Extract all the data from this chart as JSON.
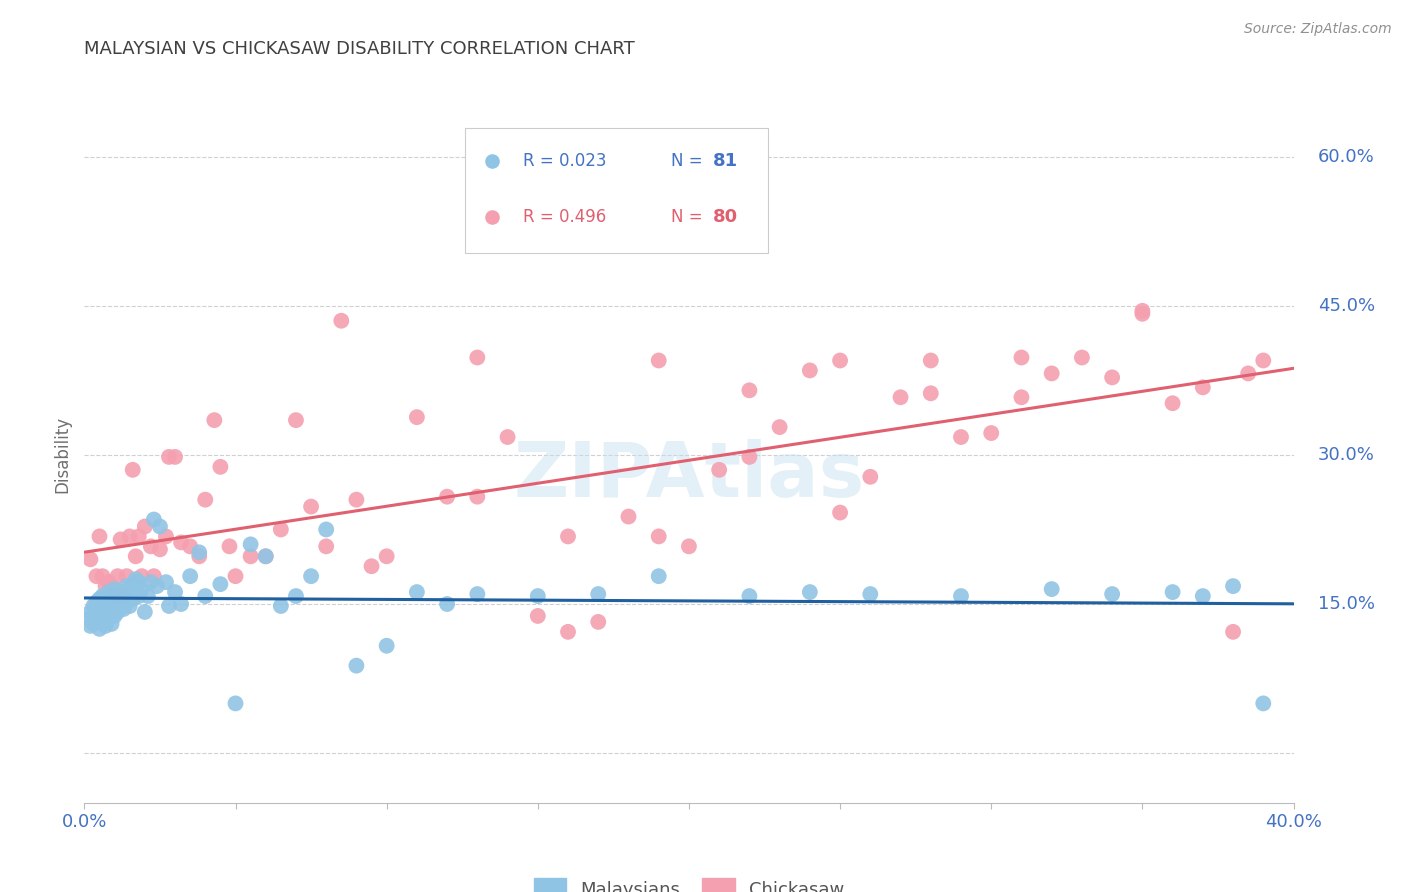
{
  "title": "MALAYSIAN VS CHICKASAW DISABILITY CORRELATION CHART",
  "source": "Source: ZipAtlas.com",
  "ylabel": "Disability",
  "ytick_labels": [
    "",
    "15.0%",
    "30.0%",
    "45.0%",
    "60.0%"
  ],
  "yticks": [
    0.0,
    0.15,
    0.3,
    0.45,
    0.6
  ],
  "xmin": 0.0,
  "xmax": 0.4,
  "ymin": -0.05,
  "ymax": 0.65,
  "malaysian_color": "#90c4e4",
  "chickasaw_color": "#f4a0b0",
  "malaysian_line_color": "#2060a0",
  "chickasaw_line_color": "#e06070",
  "grid_color": "#d0d0d0",
  "text_color": "#4472c4",
  "title_color": "#404040",
  "source_color": "#909090",
  "ylabel_color": "#707070",
  "background_color": "#ffffff",
  "legend_R_mal": "0.023",
  "legend_N_mal": "81",
  "legend_R_chi": "0.496",
  "legend_N_chi": "80",
  "malaysian_x": [
    0.001,
    0.002,
    0.002,
    0.003,
    0.003,
    0.004,
    0.004,
    0.005,
    0.005,
    0.005,
    0.006,
    0.006,
    0.006,
    0.007,
    0.007,
    0.007,
    0.008,
    0.008,
    0.008,
    0.009,
    0.009,
    0.009,
    0.01,
    0.01,
    0.01,
    0.011,
    0.011,
    0.012,
    0.012,
    0.013,
    0.013,
    0.014,
    0.014,
    0.015,
    0.015,
    0.016,
    0.016,
    0.017,
    0.017,
    0.018,
    0.018,
    0.019,
    0.02,
    0.021,
    0.022,
    0.023,
    0.024,
    0.025,
    0.027,
    0.028,
    0.03,
    0.032,
    0.035,
    0.038,
    0.04,
    0.045,
    0.05,
    0.055,
    0.06,
    0.065,
    0.07,
    0.075,
    0.08,
    0.09,
    0.1,
    0.11,
    0.12,
    0.13,
    0.15,
    0.17,
    0.19,
    0.22,
    0.24,
    0.26,
    0.29,
    0.32,
    0.34,
    0.36,
    0.37,
    0.38,
    0.39
  ],
  "malaysian_y": [
    0.135,
    0.128,
    0.142,
    0.13,
    0.148,
    0.138,
    0.152,
    0.125,
    0.14,
    0.155,
    0.132,
    0.145,
    0.158,
    0.128,
    0.142,
    0.155,
    0.135,
    0.148,
    0.162,
    0.13,
    0.145,
    0.158,
    0.138,
    0.15,
    0.165,
    0.142,
    0.158,
    0.148,
    0.162,
    0.145,
    0.16,
    0.152,
    0.168,
    0.148,
    0.165,
    0.155,
    0.17,
    0.16,
    0.175,
    0.158,
    0.172,
    0.165,
    0.142,
    0.158,
    0.172,
    0.235,
    0.168,
    0.228,
    0.172,
    0.148,
    0.162,
    0.15,
    0.178,
    0.202,
    0.158,
    0.17,
    0.05,
    0.21,
    0.198,
    0.148,
    0.158,
    0.178,
    0.225,
    0.088,
    0.108,
    0.162,
    0.15,
    0.16,
    0.158,
    0.16,
    0.178,
    0.158,
    0.162,
    0.16,
    0.158,
    0.165,
    0.16,
    0.162,
    0.158,
    0.168,
    0.05
  ],
  "chickasaw_x": [
    0.002,
    0.004,
    0.005,
    0.006,
    0.007,
    0.008,
    0.009,
    0.01,
    0.011,
    0.012,
    0.013,
    0.014,
    0.015,
    0.016,
    0.017,
    0.018,
    0.019,
    0.02,
    0.022,
    0.023,
    0.025,
    0.027,
    0.028,
    0.03,
    0.032,
    0.035,
    0.038,
    0.04,
    0.043,
    0.045,
    0.048,
    0.05,
    0.055,
    0.06,
    0.065,
    0.07,
    0.075,
    0.08,
    0.085,
    0.09,
    0.095,
    0.1,
    0.11,
    0.12,
    0.13,
    0.14,
    0.15,
    0.16,
    0.17,
    0.18,
    0.19,
    0.2,
    0.21,
    0.22,
    0.23,
    0.24,
    0.25,
    0.26,
    0.27,
    0.28,
    0.29,
    0.3,
    0.31,
    0.32,
    0.33,
    0.34,
    0.35,
    0.36,
    0.37,
    0.38,
    0.385,
    0.39,
    0.35,
    0.31,
    0.28,
    0.25,
    0.22,
    0.19,
    0.16,
    0.13
  ],
  "chickasaw_y": [
    0.195,
    0.178,
    0.218,
    0.178,
    0.168,
    0.172,
    0.168,
    0.158,
    0.178,
    0.215,
    0.158,
    0.178,
    0.218,
    0.285,
    0.198,
    0.218,
    0.178,
    0.228,
    0.208,
    0.178,
    0.205,
    0.218,
    0.298,
    0.298,
    0.212,
    0.208,
    0.198,
    0.255,
    0.335,
    0.288,
    0.208,
    0.178,
    0.198,
    0.198,
    0.225,
    0.335,
    0.248,
    0.208,
    0.435,
    0.255,
    0.188,
    0.198,
    0.338,
    0.258,
    0.258,
    0.318,
    0.138,
    0.218,
    0.132,
    0.238,
    0.218,
    0.208,
    0.285,
    0.298,
    0.328,
    0.385,
    0.242,
    0.278,
    0.358,
    0.362,
    0.318,
    0.322,
    0.358,
    0.382,
    0.398,
    0.378,
    0.442,
    0.352,
    0.368,
    0.122,
    0.382,
    0.395,
    0.445,
    0.398,
    0.395,
    0.395,
    0.365,
    0.395,
    0.122,
    0.398
  ]
}
